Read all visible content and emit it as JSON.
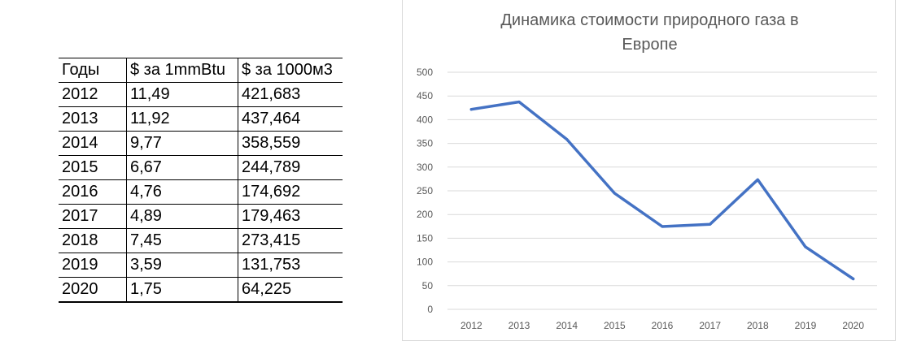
{
  "table": {
    "headers": [
      "Годы",
      "$ за 1mmBtu",
      "$ за 1000м3"
    ],
    "rows": [
      [
        "2012",
        "11,49",
        "421,683"
      ],
      [
        "2013",
        "11,92",
        "437,464"
      ],
      [
        "2014",
        "9,77",
        "358,559"
      ],
      [
        "2015",
        "6,67",
        "244,789"
      ],
      [
        "2016",
        "4,76",
        "174,692"
      ],
      [
        "2017",
        "4,89",
        "179,463"
      ],
      [
        "2018",
        "7,45",
        "273,415"
      ],
      [
        "2019",
        "3,59",
        "131,753"
      ],
      [
        "2020",
        "1,75",
        "64,225"
      ]
    ]
  },
  "chart_data": {
    "type": "line",
    "title_line1": "Динамика стоимости природного газа в",
    "title_line2": "Европе",
    "categories": [
      "2012",
      "2013",
      "2014",
      "2015",
      "2016",
      "2017",
      "2018",
      "2019",
      "2020"
    ],
    "series": [
      {
        "values": [
          421.683,
          437.464,
          358.559,
          244.789,
          174.692,
          179.463,
          273.415,
          131.753,
          64.225
        ],
        "color": "#4472C4"
      }
    ],
    "ylim": [
      0,
      500
    ],
    "yticks": [
      "0",
      "50",
      "100",
      "150",
      "200",
      "250",
      "300",
      "350",
      "400",
      "450",
      "500"
    ],
    "grid": true,
    "gridColor": "#d9d9d9",
    "legend": "none"
  }
}
